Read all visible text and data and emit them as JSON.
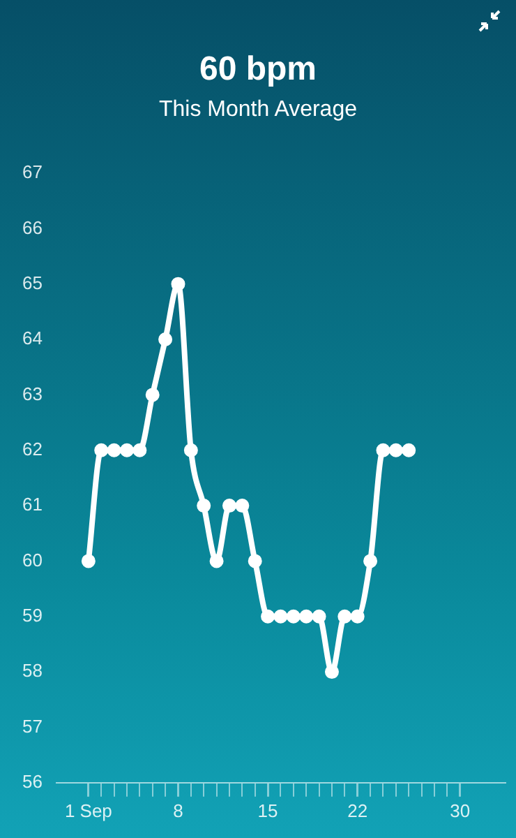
{
  "chart_data": {
    "type": "line",
    "title": "60 bpm",
    "subtitle": "This Month Average",
    "x": [
      1,
      2,
      3,
      4,
      5,
      6,
      7,
      8,
      9,
      10,
      11,
      12,
      13,
      14,
      15,
      16,
      17,
      18,
      19,
      20,
      21,
      22,
      23,
      24,
      25,
      26
    ],
    "series": [
      {
        "color": "#ffffff",
        "values": [
          60,
          62,
          62,
          62,
          62,
          63,
          64,
          65,
          62,
          61,
          60,
          61,
          61,
          60,
          59,
          59,
          59,
          59,
          59,
          58,
          59,
          59,
          60,
          62,
          62,
          62
        ]
      }
    ],
    "xlim": [
      -1.5,
      33.5
    ],
    "xticks": [
      {
        "value": 1,
        "label": "1 Sep"
      },
      {
        "value": 2,
        "label": null
      },
      {
        "value": 3,
        "label": null
      },
      {
        "value": 4,
        "label": null
      },
      {
        "value": 5,
        "label": null
      },
      {
        "value": 6,
        "label": null
      },
      {
        "value": 7,
        "label": null
      },
      8,
      {
        "value": 9,
        "label": null
      },
      {
        "value": 10,
        "label": null
      },
      {
        "value": 11,
        "label": null
      },
      {
        "value": 12,
        "label": null
      },
      {
        "value": 13,
        "label": null
      },
      {
        "value": 14,
        "label": null
      },
      15,
      {
        "value": 16,
        "label": null
      },
      {
        "value": 17,
        "label": null
      },
      {
        "value": 18,
        "label": null
      },
      {
        "value": 19,
        "label": null
      },
      {
        "value": 20,
        "label": null
      },
      {
        "value": 21,
        "label": null
      },
      22,
      {
        "value": 23,
        "label": null
      },
      {
        "value": 24,
        "label": null
      },
      {
        "value": 25,
        "label": null
      },
      {
        "value": 26,
        "label": null
      },
      {
        "value": 27,
        "label": null
      },
      {
        "value": 28,
        "label": null
      },
      {
        "value": 29,
        "label": null
      },
      30
    ],
    "ylim": [
      56,
      67
    ],
    "yticks": [
      56,
      57,
      58,
      59,
      60,
      61,
      62,
      63,
      64,
      65,
      66,
      67
    ],
    "grid": false,
    "legend": false,
    "marker": "circle",
    "line_style": "solid"
  }
}
